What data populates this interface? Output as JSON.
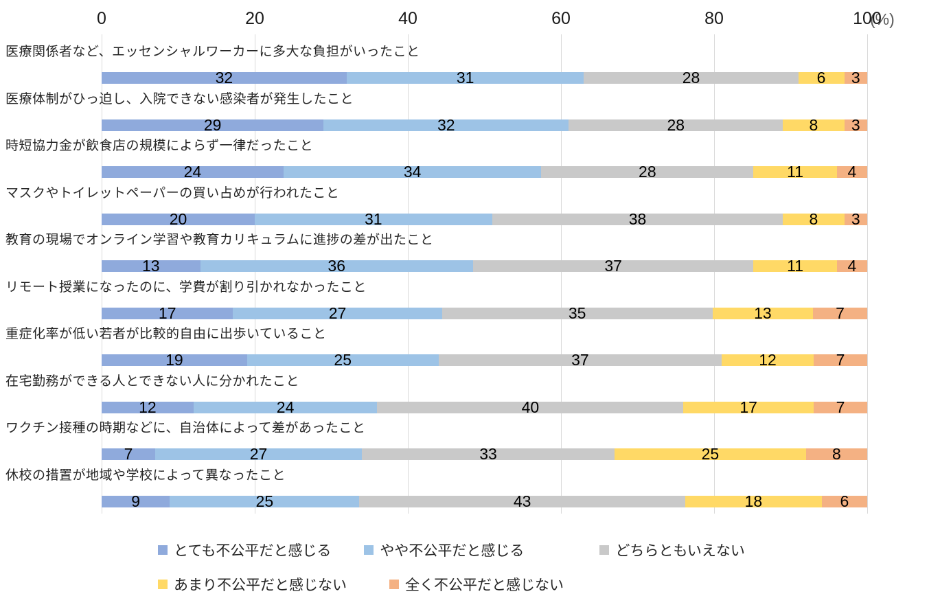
{
  "axis": {
    "ticks": [
      "0",
      "20",
      "40",
      "60",
      "80",
      "100"
    ],
    "unit": "(%)"
  },
  "colors": {
    "gridline": "#d9d9d9",
    "axis_unit_text": "#595959",
    "value_text": "#000000",
    "label_text": "#262626"
  },
  "chart_data": {
    "type": "bar",
    "orientation": "horizontal",
    "stacked": true,
    "percent_stacked": true,
    "title": "",
    "xlabel": "(%)",
    "ylabel": "",
    "xlim": [
      0,
      100
    ],
    "x_ticks": [
      0,
      20,
      40,
      60,
      80,
      100
    ],
    "grid": "vertical",
    "legend_position": "bottom",
    "categories": [
      "医療関係者など、エッセンシャルワーカーに多大な負担がいったこと",
      "医療体制がひっ迫し、入院できない感染者が発生したこと",
      "時短協力金が飲食店の規模によらず一律だったこと",
      "マスクやトイレットペーパーの買い占めが行われたこと",
      "教育の現場でオンライン学習や教育カリキュラムに進捗の差が出たこと",
      "リモート授業になったのに、学費が割り引かれなかったこと",
      "重症化率が低い若者が比較的自由に出歩いていること",
      "在宅勤務ができる人とできない人に分かれたこと",
      "ワクチン接種の時期などに、自治体によって差があったこと",
      "休校の措置が地域や学校によって異なったこと"
    ],
    "series": [
      {
        "name": "とても不公平だと感じる",
        "color": "#8FAADC",
        "values": [
          32,
          29,
          24,
          20,
          13,
          17,
          19,
          12,
          7,
          9
        ]
      },
      {
        "name": "やや不公平だと感じる",
        "color": "#9DC3E6",
        "values": [
          31,
          32,
          34,
          31,
          36,
          27,
          25,
          24,
          27,
          25
        ]
      },
      {
        "name": "どちらともいえない",
        "color": "#C9C9C9",
        "values": [
          28,
          28,
          28,
          38,
          37,
          35,
          37,
          40,
          33,
          43
        ]
      },
      {
        "name": "あまり不公平だと感じない",
        "color": "#FFD966",
        "values": [
          6,
          8,
          11,
          8,
          11,
          13,
          12,
          17,
          25,
          18
        ]
      },
      {
        "name": "全く不公平だと感じない",
        "color": "#F4B183",
        "values": [
          3,
          3,
          4,
          3,
          4,
          7,
          7,
          7,
          8,
          6
        ]
      }
    ],
    "legend_rows": [
      [
        0,
        1,
        2
      ],
      [
        3,
        4
      ]
    ]
  }
}
